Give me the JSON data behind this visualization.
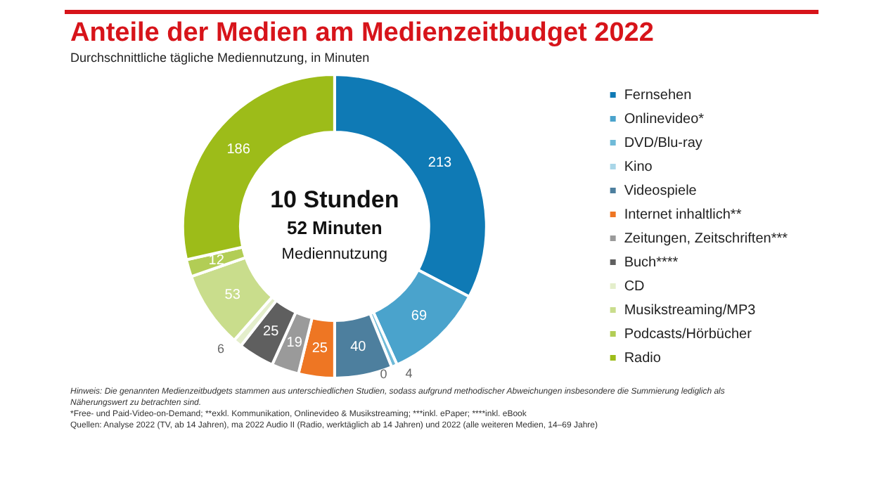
{
  "chart_data": {
    "type": "donut",
    "title": "Anteile der Medien am Medienzeitbudget 2022",
    "subtitle": "Durchschnittliche tägliche Mediennutzung, in Minuten",
    "categories": [
      "Fernsehen",
      "Onlinevideo*",
      "DVD/Blu-ray",
      "Kino",
      "Videospiele",
      "Internet inhaltlich**",
      "Zeitungen, Zeitschriften***",
      "Buch****",
      "CD",
      "Musikstreaming/MP3",
      "Podcasts/Hörbücher",
      "Radio"
    ],
    "values": [
      213,
      69,
      4,
      0,
      40,
      25,
      19,
      25,
      6,
      53,
      12,
      186
    ],
    "colors": [
      "#0f7ab5",
      "#4aa3cc",
      "#6fbad8",
      "#a9d6e8",
      "#4d7f9e",
      "#ee7623",
      "#9a9a9a",
      "#5f5f5f",
      "#e4eecb",
      "#c9dd8c",
      "#b2cd55",
      "#9dbc19"
    ],
    "value_labels": [
      "213",
      "69",
      "4",
      "0",
      "40",
      "25",
      "19",
      "25",
      "6",
      "53",
      "12",
      "186"
    ],
    "legend": "right",
    "annotations": [
      "10 Stunden",
      "52 Minuten",
      "Mediennutzung",
      "Hinweis: Die genannten Medienzeitbudgets stammen aus unterschiedlichen Studien, sodass aufgrund methodischer Abweichungen insbesondere die Summierung lediglich als Näherungswert zu betrachten sind.",
      "*Free- und Paid-Video-on-Demand; **exkl. Kommunikation, Onlinevideo & Musikstreaming; ***inkl. ePaper; ****inkl. eBook",
      "Quellen: Analyse 2022 (TV, ab 14 Jahren), ma 2022 Audio II (Radio, werktäglich ab 14 Jahren) und 2022 (alle weiteren Medien, 14–69 Jahre)"
    ]
  }
}
